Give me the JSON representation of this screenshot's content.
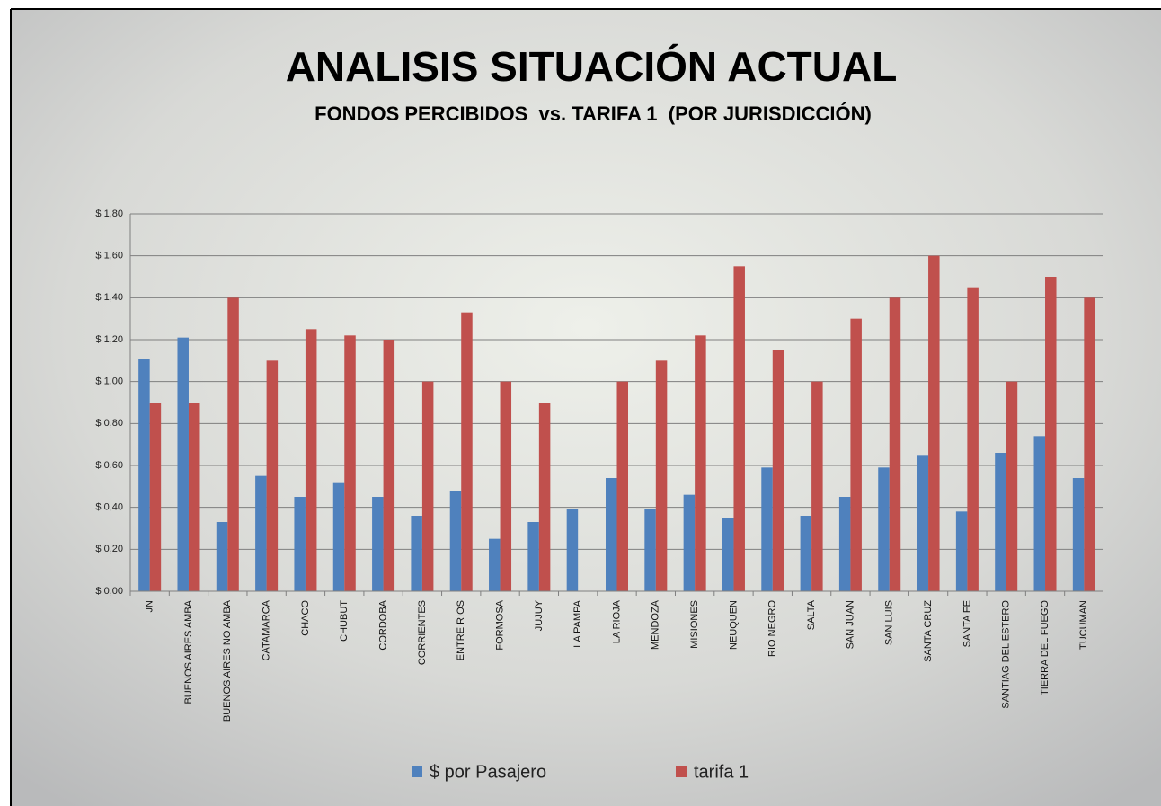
{
  "chart_data": {
    "type": "bar",
    "title": "ANALISIS SITUACIÓN ACTUAL",
    "subtitle": "FONDOS PERCIBIDOS  vs. TARIFA 1  (POR JURISDICCIÓN)",
    "categories": [
      "JN",
      "BUENOS AIRES AMBA",
      "BUENOS AIRES NO AMBA",
      "CATAMARCA",
      "CHACO",
      "CHUBUT",
      "CORDOBA",
      "CORRIENTES",
      "ENTRE RIOS",
      "FORMOSA",
      "JUJUY",
      "LA PAMPA",
      "LA RIOJA",
      "MENDOZA",
      "MISIONES",
      "NEUQUEN",
      "RIO NEGRO",
      "SALTA",
      "SAN JUAN",
      "SAN LUIS",
      "SANTA CRUZ",
      "SANTA FE",
      "SANTIAG DEL ESTERO",
      "TIERRA DEL FUEGO",
      "TUCUMAN"
    ],
    "series": [
      {
        "name": "$ por Pasajero",
        "color": "#4f81bd",
        "values": [
          1.11,
          1.21,
          0.33,
          0.55,
          0.45,
          0.52,
          0.45,
          0.36,
          0.48,
          0.25,
          0.33,
          0.39,
          0.54,
          0.39,
          0.46,
          0.35,
          0.59,
          0.36,
          0.45,
          0.59,
          0.65,
          0.38,
          0.66,
          0.74,
          0.54
        ]
      },
      {
        "name": "tarifa 1",
        "color": "#c0504d",
        "values": [
          0.9,
          0.9,
          1.4,
          1.1,
          1.25,
          1.22,
          1.2,
          1.0,
          1.33,
          1.0,
          0.9,
          null,
          1.0,
          1.1,
          1.22,
          1.55,
          1.15,
          1.0,
          1.3,
          1.4,
          1.6,
          1.45,
          1.0,
          1.5,
          1.4
        ]
      }
    ],
    "ylim": [
      0,
      1.8
    ],
    "yticks": [
      {
        "value": 0,
        "label": "$ 0,00"
      },
      {
        "value": 0.2,
        "label": "$ 0,20"
      },
      {
        "value": 0.4,
        "label": "$ 0,40"
      },
      {
        "value": 0.6,
        "label": "$ 0,60"
      },
      {
        "value": 0.8,
        "label": "$ 0,80"
      },
      {
        "value": 1.0,
        "label": "$ 1,00"
      },
      {
        "value": 1.2,
        "label": "$ 1,20"
      },
      {
        "value": 1.4,
        "label": "$ 1,40"
      },
      {
        "value": 1.6,
        "label": "$ 1,60"
      },
      {
        "value": 1.8,
        "label": "$ 1,80"
      }
    ],
    "grid": true,
    "legend": "bottom"
  }
}
